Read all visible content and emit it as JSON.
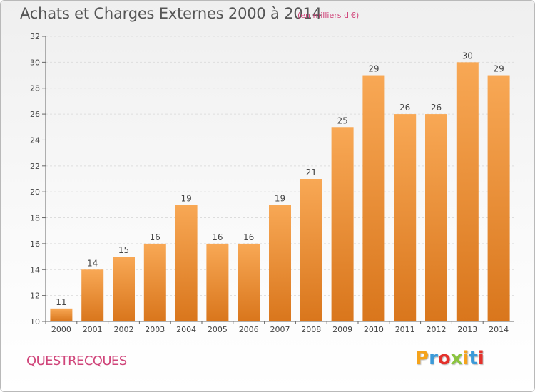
{
  "header": {
    "title": "Achats et Charges Externes 2000 à 2014",
    "subtitle": "(en milliers d'€)"
  },
  "footer": {
    "commune": "QUESTRECQUES",
    "brand": "Proxiti",
    "brand_colors": [
      "#f5a31b",
      "#3b9ad9",
      "#e4312b",
      "#8bc43f",
      "#f5a31b",
      "#3b9ad9",
      "#e4312b"
    ]
  },
  "colors": {
    "bar_light": "#f8a855",
    "bar_dark": "#d9761c",
    "axis": "#666666",
    "grid": "#dddddd"
  },
  "chart_data": {
    "type": "bar",
    "title": "Achats et Charges Externes 2000 à 2014",
    "subtitle": "(en milliers d'€)",
    "categories": [
      "2000",
      "2001",
      "2002",
      "2003",
      "2004",
      "2005",
      "2006",
      "2007",
      "2008",
      "2009",
      "2010",
      "2011",
      "2012",
      "2013",
      "2014"
    ],
    "values": [
      11,
      14,
      15,
      16,
      19,
      16,
      16,
      19,
      21,
      25,
      29,
      26,
      26,
      30,
      29
    ],
    "ylim": [
      10,
      32
    ],
    "yticks": [
      10,
      12,
      14,
      16,
      18,
      20,
      22,
      24,
      26,
      28,
      30,
      32
    ],
    "grid": true,
    "data_labels": true
  }
}
